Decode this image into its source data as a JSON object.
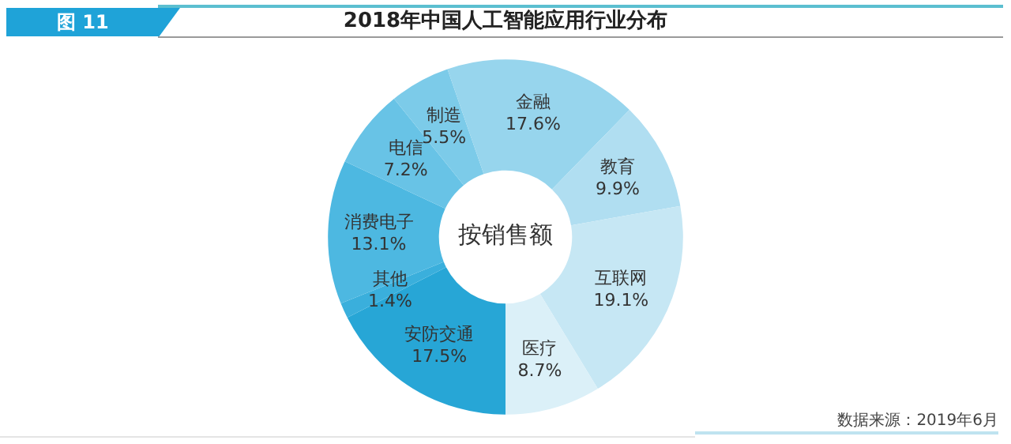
{
  "chart_data": {
    "type": "donut",
    "title": "2018年中国人工智能应用行业分布",
    "categories": [
      "安防交通",
      "其他",
      "消费电子",
      "电信",
      "制造",
      "金融",
      "教育",
      "互联网",
      "医疗"
    ],
    "values": [
      17.5,
      1.4,
      13.1,
      7.2,
      5.5,
      17.6,
      9.9,
      19.1,
      8.7
    ],
    "value_labels": [
      "17.5%",
      "1.4%",
      "13.1%",
      "7.2%",
      "5.5%",
      "17.6%",
      "9.9%",
      "19.1%",
      "8.7%"
    ],
    "colors": [
      "#27a6d6",
      "#3aafdc",
      "#4db8e1",
      "#68c3e6",
      "#7ccbe9",
      "#97d5ed",
      "#b0def1",
      "#c6e7f4",
      "#dbf0f8"
    ],
    "annotations": [
      "图 11",
      "按销售额",
      "数据来源：2019年6月"
    ],
    "legend": false
  }
}
